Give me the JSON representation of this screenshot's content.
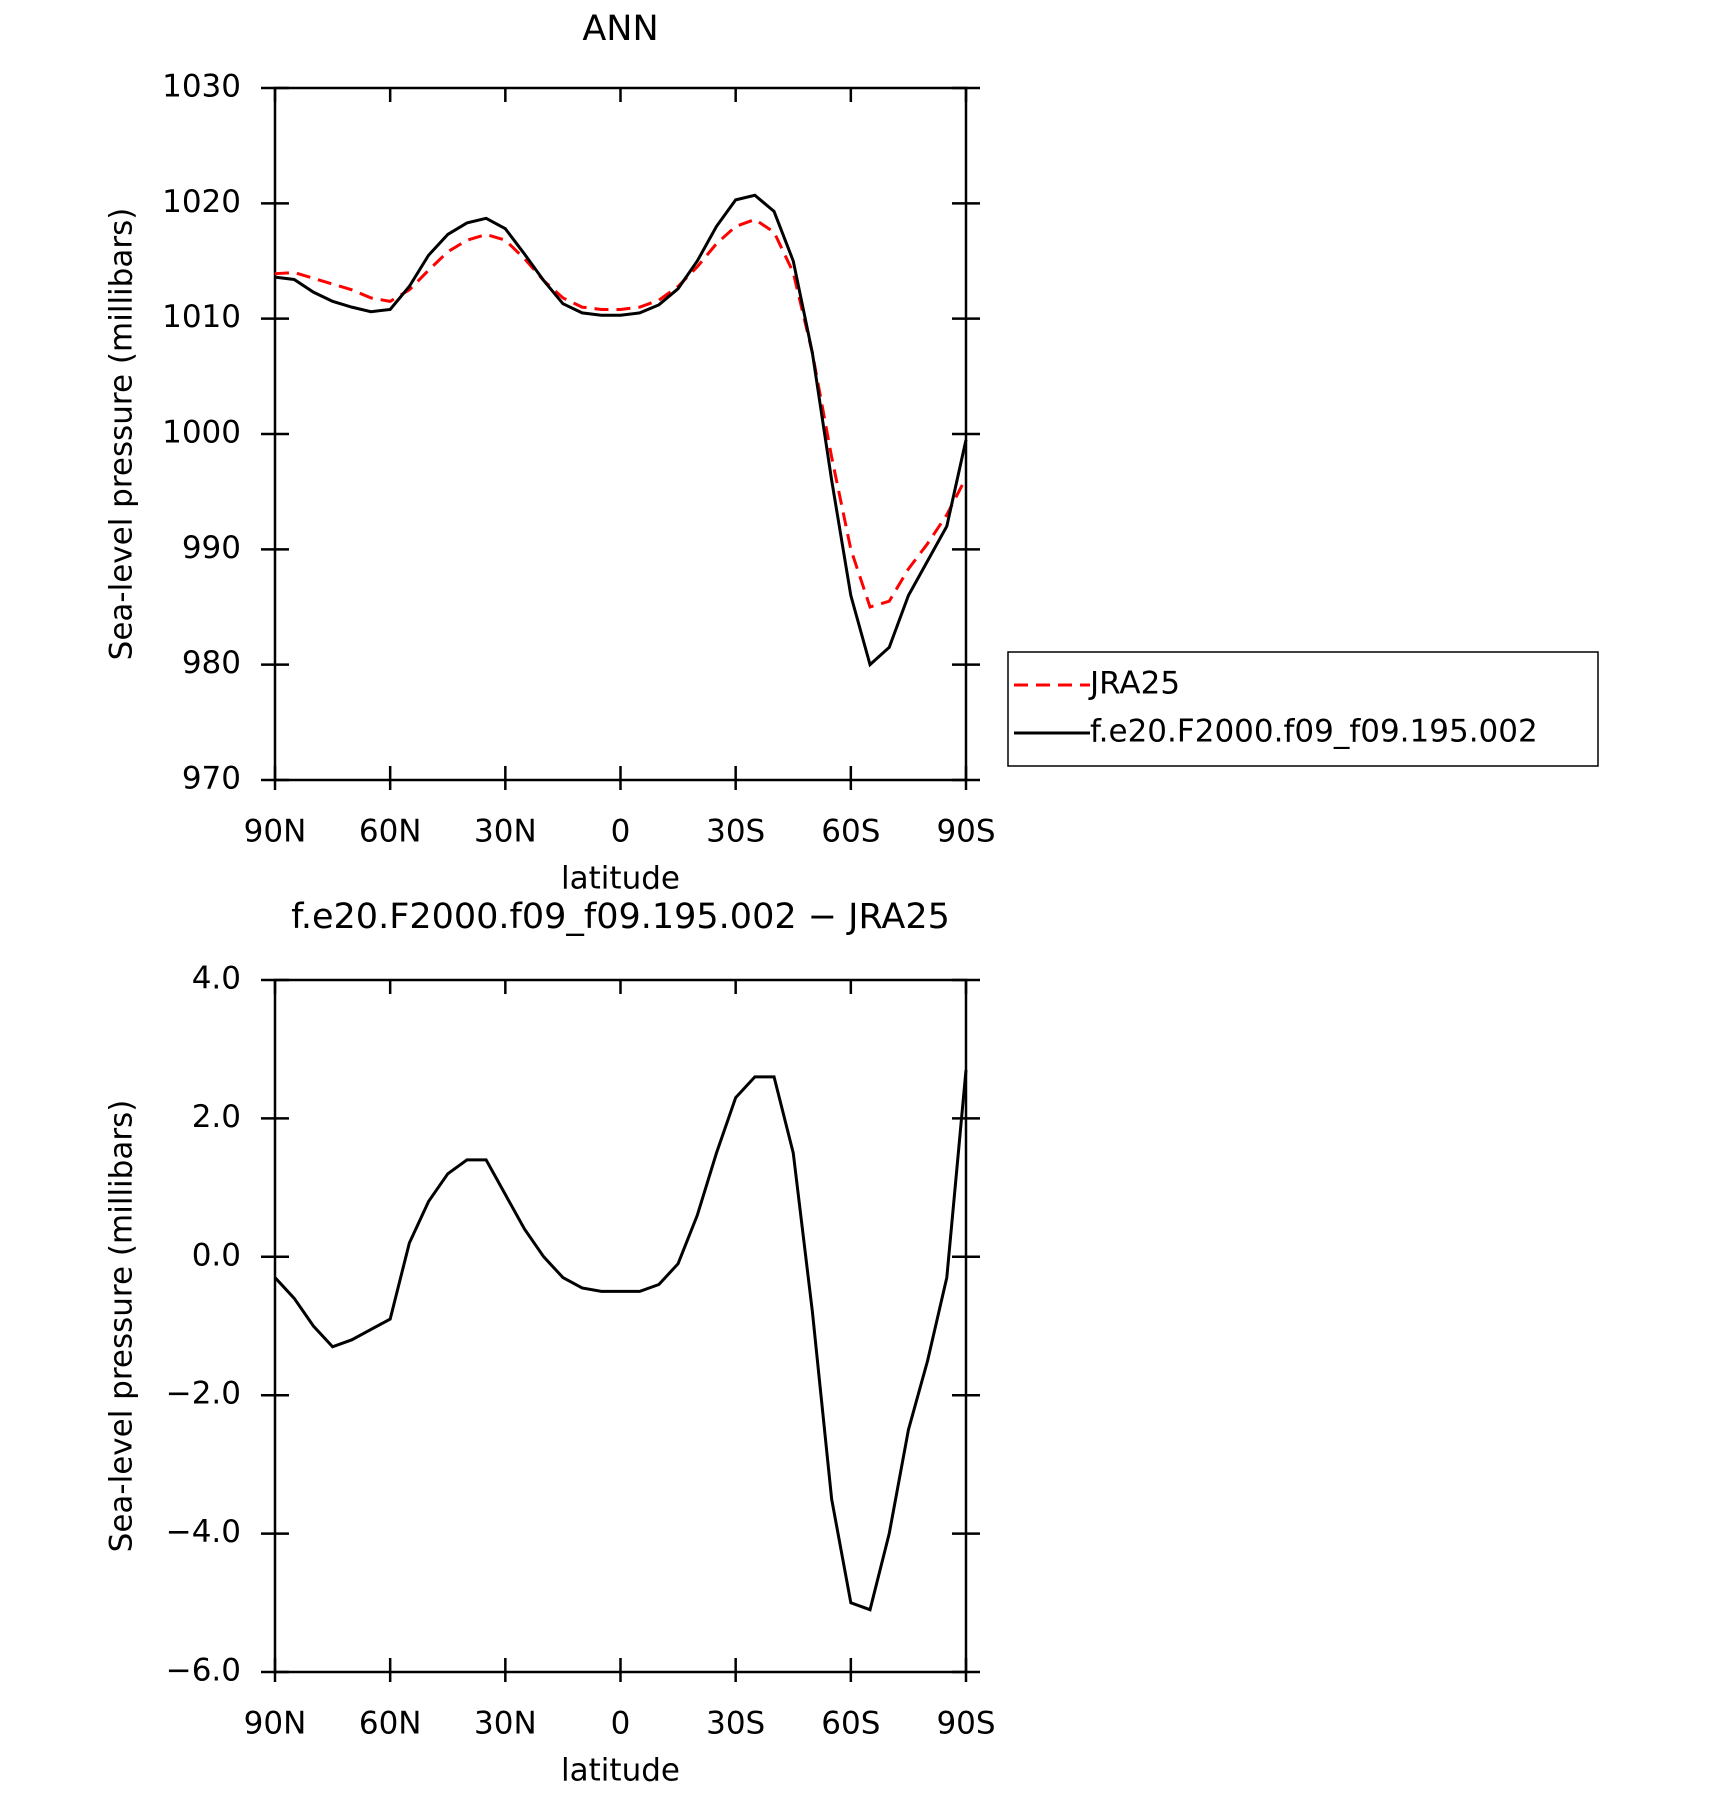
{
  "chart_data": [
    {
      "type": "line",
      "title": "ANN",
      "xlabel": "latitude",
      "ylabel": "Sea-level pressure (millibars)",
      "x": [
        90,
        85,
        80,
        75,
        70,
        65,
        60,
        55,
        50,
        45,
        40,
        35,
        30,
        25,
        20,
        15,
        10,
        5,
        0,
        -5,
        -10,
        -15,
        -20,
        -25,
        -30,
        -35,
        -40,
        -45,
        -50,
        -55,
        -60,
        -65,
        -70,
        -75,
        -80,
        -85,
        -90
      ],
      "series": [
        {
          "name": "JRA25",
          "color": "#ff0000",
          "linestyle": "dashed",
          "values": [
            1013.9,
            1014.0,
            1013.5,
            1013.0,
            1012.5,
            1011.8,
            1011.5,
            1012.5,
            1014.2,
            1015.8,
            1016.8,
            1017.3,
            1016.8,
            1015.2,
            1013.3,
            1011.8,
            1011.0,
            1010.8,
            1010.8,
            1011.0,
            1011.6,
            1012.8,
            1014.5,
            1016.5,
            1018.0,
            1018.6,
            1017.5,
            1014.0,
            1007.0,
            998.0,
            990.0,
            985.0,
            985.5,
            988.3,
            990.5,
            993.0,
            996.2
          ]
        },
        {
          "name": "f.e20.F2000.f09_f09.195.002",
          "color": "#000000",
          "linestyle": "solid",
          "values": [
            1013.6,
            1013.4,
            1012.3,
            1011.5,
            1011.0,
            1010.6,
            1010.8,
            1012.8,
            1015.5,
            1017.3,
            1018.3,
            1018.7,
            1017.8,
            1015.6,
            1013.3,
            1011.3,
            1010.5,
            1010.3,
            1010.3,
            1010.5,
            1011.2,
            1012.6,
            1015.0,
            1018.0,
            1020.3,
            1020.7,
            1019.3,
            1015.0,
            1007.0,
            996.0,
            986.0,
            980.0,
            981.5,
            986.0,
            989.0,
            992.0,
            999.5
          ]
        }
      ],
      "xlim": [
        90,
        -90
      ],
      "xticks": [
        {
          "value": 90,
          "label": "90N"
        },
        {
          "value": 60,
          "label": "60N"
        },
        {
          "value": 30,
          "label": "30N"
        },
        0,
        {
          "value": -30,
          "label": "30S"
        },
        {
          "value": -60,
          "label": "60S"
        },
        {
          "value": -90,
          "label": "90S"
        }
      ],
      "ylim": [
        970,
        1030
      ],
      "yticks": [
        970,
        980,
        990,
        1000,
        1010,
        1020,
        1030
      ],
      "legend": "right"
    },
    {
      "type": "line",
      "title": "f.e20.F2000.f09_f09.195.002 − JRA25",
      "xlabel": "latitude",
      "ylabel": "Sea-level pressure (millibars)",
      "x": [
        90,
        85,
        80,
        75,
        70,
        65,
        60,
        55,
        50,
        45,
        40,
        35,
        30,
        25,
        20,
        15,
        10,
        5,
        0,
        -5,
        -10,
        -15,
        -20,
        -25,
        -30,
        -35,
        -40,
        -45,
        -50,
        -55,
        -60,
        -65,
        -70,
        -75,
        -80,
        -85,
        -90
      ],
      "series": [
        {
          "color": "#000000",
          "linestyle": "solid",
          "values": [
            -0.3,
            -0.6,
            -1.0,
            -1.3,
            -1.2,
            -1.05,
            -0.9,
            0.2,
            0.8,
            1.2,
            1.4,
            1.4,
            0.9,
            0.4,
            0.0,
            -0.3,
            -0.45,
            -0.5,
            -0.5,
            -0.5,
            -0.4,
            -0.1,
            0.6,
            1.5,
            2.3,
            2.6,
            2.6,
            1.5,
            -0.8,
            -3.5,
            -5.0,
            -5.1,
            -4.0,
            -2.5,
            -1.5,
            -0.3,
            2.7
          ]
        }
      ],
      "xlim": [
        90,
        -90
      ],
      "xticks": [
        {
          "value": 90,
          "label": "90N"
        },
        {
          "value": 60,
          "label": "60N"
        },
        {
          "value": 30,
          "label": "30N"
        },
        0,
        {
          "value": -30,
          "label": "30S"
        },
        {
          "value": -60,
          "label": "60S"
        },
        {
          "value": -90,
          "label": "90S"
        }
      ],
      "ylim": [
        -6,
        4
      ],
      "yticks": [
        {
          "value": -6,
          "label": "−6.0"
        },
        {
          "value": -4,
          "label": "−4.0"
        },
        {
          "value": -2,
          "label": "−2.0"
        },
        {
          "value": 0,
          "label": "0.0"
        },
        {
          "value": 2,
          "label": "2.0"
        },
        {
          "value": 4,
          "label": "4.0"
        }
      ]
    }
  ]
}
